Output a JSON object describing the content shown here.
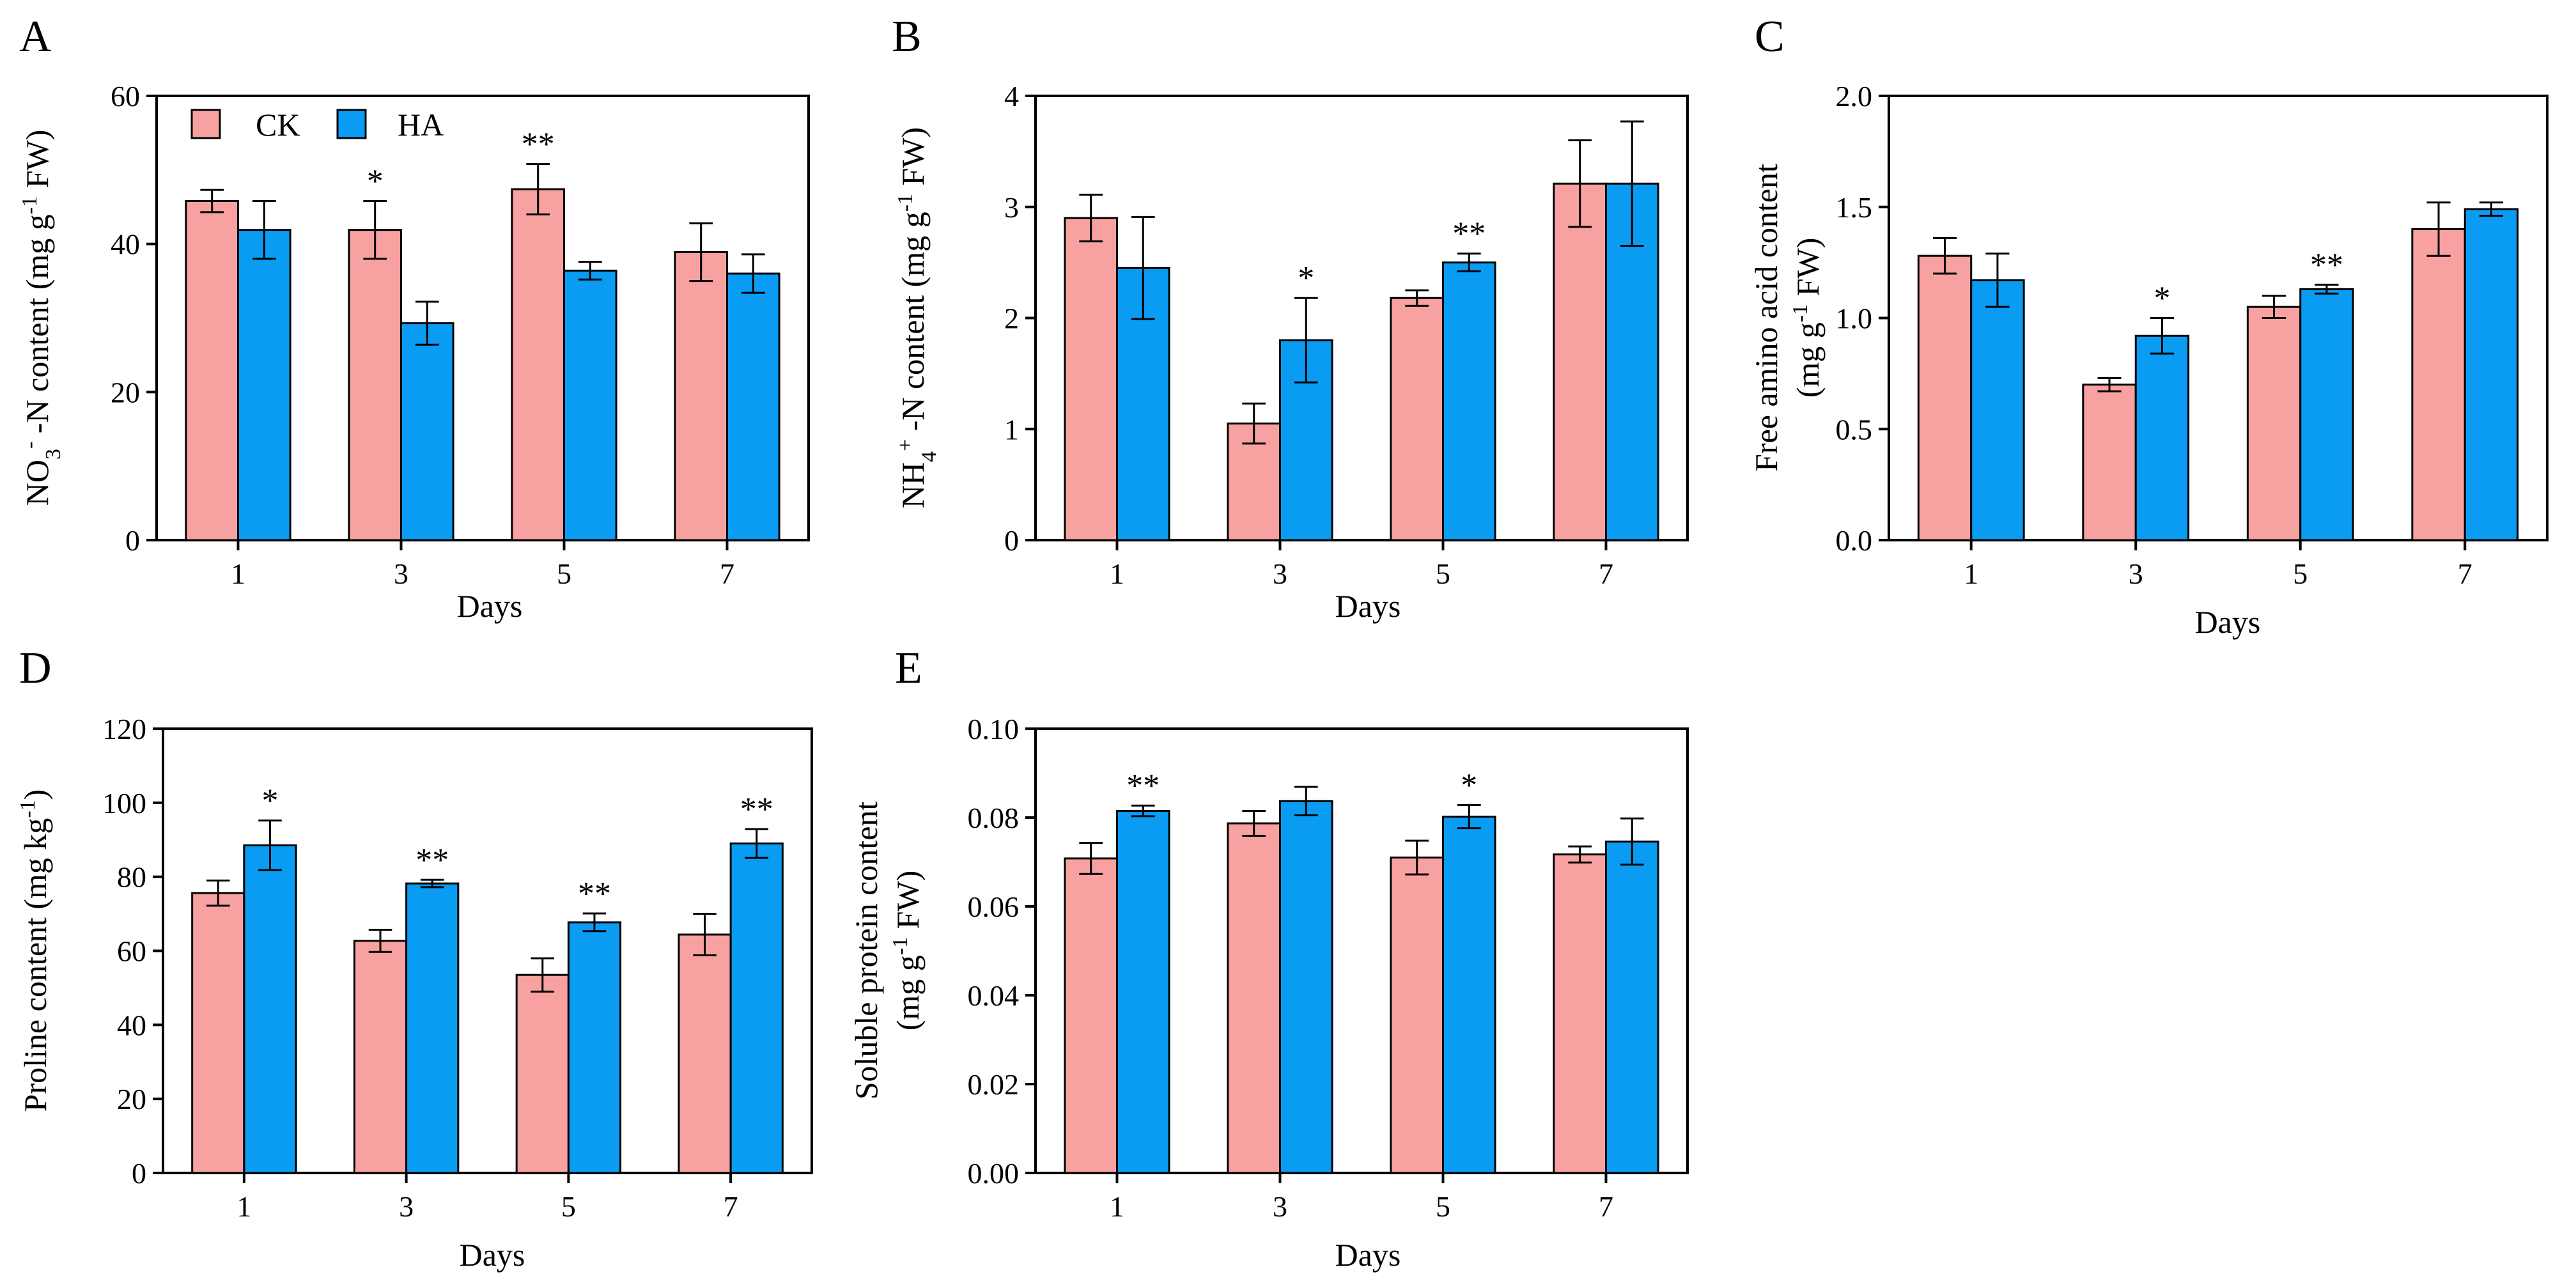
{
  "legend": [
    {
      "label": "CK",
      "color": "#F7A1A1"
    },
    {
      "label": "HA",
      "color": "#0A9BF2"
    }
  ],
  "chart_data": [
    {
      "panel": "A",
      "type": "bar",
      "categories": [
        "1",
        "3",
        "5",
        "7"
      ],
      "xlabel": "Days",
      "ylabel_parts": [
        "NO",
        "3",
        "-",
        " -N content (mg g",
        "-1",
        " FW)"
      ],
      "ylim": [
        0,
        60
      ],
      "yticks": [
        "0",
        "20",
        "40",
        "60"
      ],
      "series": [
        {
          "name": "CK",
          "values": [
            45.8,
            41.9,
            47.4,
            38.9
          ],
          "errors": [
            1.5,
            3.9,
            3.4,
            3.9
          ]
        },
        {
          "name": "HA",
          "values": [
            41.9,
            29.3,
            36.4,
            36.0
          ],
          "errors": [
            3.9,
            2.9,
            1.2,
            2.6
          ]
        }
      ],
      "significance": [
        {
          "category": "3",
          "series": "CK",
          "label": "*"
        },
        {
          "category": "5",
          "series": "CK",
          "label": "**"
        }
      ],
      "legend_position": "top-left"
    },
    {
      "panel": "B",
      "type": "bar",
      "categories": [
        "1",
        "3",
        "5",
        "7"
      ],
      "xlabel": "Days",
      "ylabel_parts": [
        "NH",
        "4",
        "+",
        " -N content (mg g",
        "-1",
        " FW)"
      ],
      "ylim": [
        0,
        4
      ],
      "yticks": [
        "0",
        "1",
        "2",
        "3",
        "4"
      ],
      "series": [
        {
          "name": "CK",
          "values": [
            2.9,
            1.05,
            2.18,
            3.21
          ],
          "errors": [
            0.21,
            0.18,
            0.07,
            0.39
          ]
        },
        {
          "name": "HA",
          "values": [
            2.45,
            1.8,
            2.5,
            3.21
          ],
          "errors": [
            0.46,
            0.38,
            0.08,
            0.56
          ]
        }
      ],
      "significance": [
        {
          "category": "3",
          "series": "HA",
          "label": "*"
        },
        {
          "category": "5",
          "series": "HA",
          "label": "**"
        }
      ]
    },
    {
      "panel": "C",
      "type": "bar",
      "categories": [
        "1",
        "3",
        "5",
        "7"
      ],
      "xlabel": "Days",
      "ylabel_line1": "Free amino acid content",
      "ylabel_parts": [
        "(mg g",
        "-1",
        " FW)"
      ],
      "ylim": [
        0,
        2.0
      ],
      "yticks": [
        "0.0",
        "0.5",
        "1.0",
        "1.5",
        "2.0"
      ],
      "series": [
        {
          "name": "CK",
          "values": [
            1.28,
            0.7,
            1.05,
            1.4
          ],
          "errors": [
            0.08,
            0.03,
            0.05,
            0.12
          ]
        },
        {
          "name": "HA",
          "values": [
            1.17,
            0.92,
            1.13,
            1.49
          ],
          "errors": [
            0.12,
            0.08,
            0.02,
            0.03
          ]
        }
      ],
      "significance": [
        {
          "category": "3",
          "series": "HA",
          "label": "*"
        },
        {
          "category": "5",
          "series": "HA",
          "label": "**"
        }
      ]
    },
    {
      "panel": "D",
      "type": "bar",
      "categories": [
        "1",
        "3",
        "5",
        "7"
      ],
      "xlabel": "Days",
      "ylabel_parts": [
        "Proline content (mg kg",
        "-1",
        ")"
      ],
      "ylim": [
        0,
        120
      ],
      "yticks": [
        "0",
        "20",
        "40",
        "60",
        "80",
        "100",
        "120"
      ],
      "series": [
        {
          "name": "CK",
          "values": [
            75.6,
            62.7,
            53.5,
            64.4
          ],
          "errors": [
            3.4,
            3.0,
            4.5,
            5.6
          ]
        },
        {
          "name": "HA",
          "values": [
            88.5,
            78.2,
            67.7,
            89.0
          ],
          "errors": [
            6.7,
            1.0,
            2.4,
            3.9
          ]
        }
      ],
      "significance": [
        {
          "category": "1",
          "series": "HA",
          "label": "*"
        },
        {
          "category": "3",
          "series": "HA",
          "label": "**"
        },
        {
          "category": "5",
          "series": "HA",
          "label": "**"
        },
        {
          "category": "7",
          "series": "HA",
          "label": "**"
        }
      ]
    },
    {
      "panel": "E",
      "type": "bar",
      "categories": [
        "1",
        "3",
        "5",
        "7"
      ],
      "xlabel": "Days",
      "ylabel_line1": "Soluble protein content",
      "ylabel_parts": [
        "(mg g",
        "-1",
        " FW)"
      ],
      "ylim": [
        0,
        0.1
      ],
      "yticks": [
        "0.00",
        "0.02",
        "0.04",
        "0.06",
        "0.08",
        "0.10"
      ],
      "series": [
        {
          "name": "CK",
          "values": [
            0.0708,
            0.0787,
            0.071,
            0.0717
          ],
          "errors": [
            0.0035,
            0.0028,
            0.0038,
            0.0018
          ]
        },
        {
          "name": "HA",
          "values": [
            0.0815,
            0.0837,
            0.0802,
            0.0746
          ],
          "errors": [
            0.0012,
            0.0032,
            0.0026,
            0.0052
          ]
        }
      ],
      "significance": [
        {
          "category": "1",
          "series": "HA",
          "label": "**"
        },
        {
          "category": "5",
          "series": "HA",
          "label": "*"
        }
      ]
    }
  ]
}
